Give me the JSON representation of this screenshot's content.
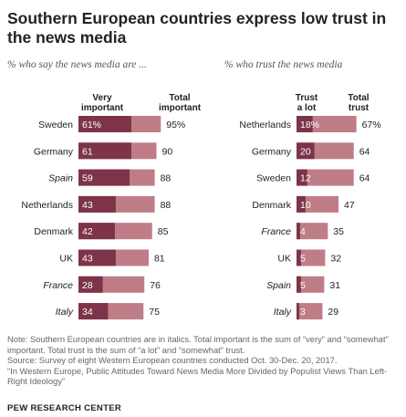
{
  "title": "Southern European countries express low trust in the news media",
  "subtitles": {
    "left": "% who say the news media are ...",
    "right": "% who trust the news media"
  },
  "colors": {
    "dark": "#7d3448",
    "light": "#bf7d88",
    "value_text_on_dark": "#ffffff",
    "text": "#222222"
  },
  "chart_data": [
    {
      "type": "bar",
      "name": "importance",
      "subtitle": "% who say the news media are ...",
      "series": [
        {
          "name": "Very important",
          "label_lines": [
            "Very",
            "important"
          ],
          "values": [
            61,
            61,
            59,
            43,
            42,
            43,
            28,
            34
          ]
        },
        {
          "name": "Total important",
          "label_lines": [
            "Total",
            "important"
          ],
          "values": [
            95,
            90,
            88,
            88,
            85,
            81,
            76,
            75
          ]
        }
      ],
      "categories": [
        "Sweden",
        "Germany",
        "Spain",
        "Netherlands",
        "Denmark",
        "UK",
        "France",
        "Italy"
      ],
      "italic_categories": [
        "Spain",
        "France",
        "Italy"
      ],
      "value_labels_inner": [
        "61%",
        "61",
        "59",
        "43",
        "42",
        "43",
        "28",
        "34"
      ],
      "value_labels_total": [
        "95%",
        "90",
        "88",
        "88",
        "85",
        "81",
        "76",
        "75"
      ]
    },
    {
      "type": "bar",
      "name": "trust",
      "subtitle": "% who trust the news media",
      "series": [
        {
          "name": "Trust a lot",
          "label_lines": [
            "Trust",
            "a lot"
          ],
          "values": [
            18,
            20,
            12,
            10,
            4,
            5,
            5,
            3
          ]
        },
        {
          "name": "Total trust",
          "label_lines": [
            "Total",
            "trust"
          ],
          "values": [
            67,
            64,
            64,
            47,
            35,
            32,
            31,
            29
          ]
        }
      ],
      "categories": [
        "Netherlands",
        "Germany",
        "Sweden",
        "Denmark",
        "France",
        "UK",
        "Spain",
        "Italy"
      ],
      "italic_categories": [
        "France",
        "Spain",
        "Italy"
      ],
      "value_labels_inner": [
        "18%",
        "20",
        "12",
        "10",
        "4",
        "5",
        "5",
        "3"
      ],
      "value_labels_total": [
        "67%",
        "64",
        "64",
        "47",
        "35",
        "32",
        "31",
        "29"
      ]
    }
  ],
  "notes": [
    "Note: Southern European countries are in italics. Total important is the sum of “very” and “somewhat” important. Total trust is the sum of “a lot” and “somewhat” trust.",
    "Source: Survey of eight Western European countries conducted Oct. 30-Dec. 20, 2017.",
    "“In Western Europe, Public Attitudes Toward News Media More Divided by Populist Views Than Left-Right Ideology”"
  ],
  "source_org": "PEW RESEARCH CENTER"
}
